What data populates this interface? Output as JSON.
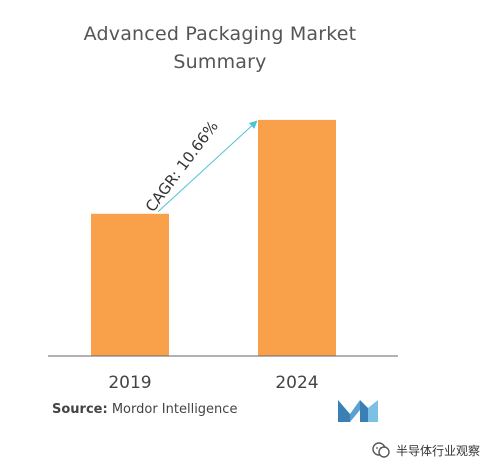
{
  "chart_data": {
    "type": "bar",
    "title_line1": "Advanced Packaging Market",
    "title_line2": "Summary",
    "categories": [
      "2019",
      "2024"
    ],
    "values": [
      1.0,
      1.66
    ],
    "ylim": [
      0,
      1.8
    ],
    "bar_color": "#f9a04a",
    "annotation": "CAGR: 10.66%",
    "annotation_color": "#4ec3d6",
    "axis_color": "#666666",
    "grid": false
  },
  "source": {
    "label": "Source:",
    "text": "Mordor Intelligence"
  },
  "watermark": {
    "text": "半导体行业观察"
  },
  "logo": {
    "icon": "mordor-intelligence-logo-icon",
    "color": "#5aa0d0"
  }
}
